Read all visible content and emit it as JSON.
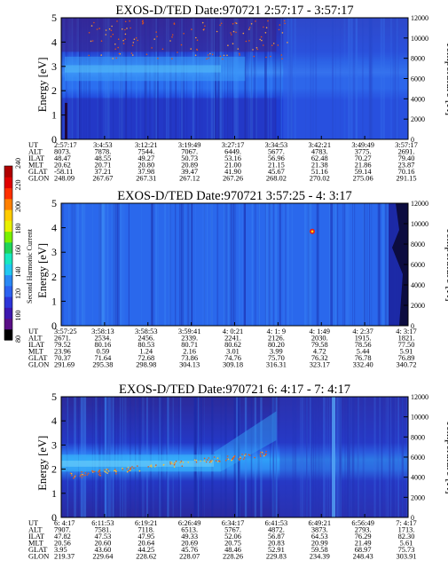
{
  "chart_data": [
    {
      "type": "heatmap",
      "title": "EXOS-D/TED   Date:970721   2:57:17 - 3:57:17",
      "ylabel": "Energy [eV]",
      "y2label": "Temperature [K]",
      "ylim": [
        0,
        5
      ],
      "y2lim": [
        0,
        12000
      ],
      "yticks": [
        "0",
        "1",
        "2",
        "3",
        "4",
        "5"
      ],
      "y2ticks": [
        "0",
        "2000",
        "4000",
        "6000",
        "8000",
        "10000",
        "12000"
      ],
      "orbit_table": {
        "labels": [
          "UT",
          "ALT",
          "ILAT",
          "MLT",
          "GLAT",
          "GLON"
        ],
        "columns": [
          [
            "2:57:17",
            "8073.",
            "48.47",
            "20.62",
            "-58.11",
            "248.09"
          ],
          [
            "3:4:53",
            "7878.",
            "48.55",
            "20.71",
            "37.21",
            "267.67"
          ],
          [
            "3:12:21",
            "7544.",
            "49.27",
            "20.80",
            "37.98",
            "267.31"
          ],
          [
            "3:19:49",
            "7067.",
            "50.73",
            "20.89",
            "39.47",
            "267.12"
          ],
          [
            "3:27:17",
            "6449.",
            "53.16",
            "21.00",
            "41.90",
            "267.26"
          ],
          [
            "3:34:53",
            "5677.",
            "56.96",
            "21.15",
            "45.67",
            "268.02"
          ],
          [
            "3:42:21",
            "4783.",
            "62.48",
            "21.38",
            "51.16",
            "270.02"
          ],
          [
            "3:49:49",
            "3775.",
            "70.27",
            "21.86",
            "59.14",
            "275.06"
          ],
          [
            "3:57:17",
            "2691.",
            "79.40",
            "23.87",
            "70.16",
            "291.15"
          ]
        ]
      }
    },
    {
      "type": "heatmap",
      "title": "EXOS-D/TED   Date:970721   3:57:25 - 4: 3:17",
      "ylabel": "Energy [eV]",
      "y2label": "Temperature [K]",
      "ylim": [
        0,
        5
      ],
      "y2lim": [
        0,
        12000
      ],
      "yticks": [
        "0",
        "1",
        "2",
        "3",
        "4",
        "5"
      ],
      "y2ticks": [
        "0",
        "2000",
        "4000",
        "6000",
        "8000",
        "10000",
        "12000"
      ],
      "colorbar": {
        "label": "Second Harmonic Current",
        "ticks": [
          "80",
          "100",
          "120",
          "140",
          "160",
          "180",
          "200",
          "220",
          "240"
        ],
        "colors": [
          "#000000",
          "#5a0f86",
          "#3d18b0",
          "#2d35d8",
          "#2c62f0",
          "#2a88f4",
          "#22c7f0",
          "#18e8c0",
          "#1fd35a",
          "#7af000",
          "#e8f000",
          "#ffcc00",
          "#ff8000",
          "#ff3000",
          "#e00000",
          "#b00000"
        ]
      },
      "orbit_table": {
        "labels": [
          "UT",
          "ALT",
          "ILAT",
          "MLT",
          "GLAT",
          "GLON"
        ],
        "columns": [
          [
            "3:57:25",
            "2671.",
            "79.52",
            "23.96",
            "70.37",
            "291.69"
          ],
          [
            "3:58:13",
            "2534.",
            "80.16",
            "0.59",
            "71.64",
            "295.38"
          ],
          [
            "3:58:53",
            "2456.",
            "80.53",
            "1.24",
            "72.68",
            "298.98"
          ],
          [
            "3:59:41",
            "2339.",
            "80.71",
            "2.16",
            "73.86",
            "304.13"
          ],
          [
            "4: 0:21",
            "2241.",
            "80.62",
            "3.01",
            "74.76",
            "309.18"
          ],
          [
            "4: 1: 9",
            "2126.",
            "80.20",
            "3.99",
            "75.70",
            "316.31"
          ],
          [
            "4: 1:49",
            "2030.",
            "79.58",
            "4.72",
            "76.32",
            "323.17"
          ],
          [
            "4: 2:37",
            "1915.",
            "78.56",
            "5.44",
            "76.78",
            "332.40"
          ],
          [
            "4: 3:17",
            "1821.",
            "77.50",
            "5.91",
            "76.89",
            "340.72"
          ]
        ]
      }
    },
    {
      "type": "heatmap",
      "title": "EXOS-D/TED   Date:970721   6: 4:17 - 7: 4:17",
      "ylabel": "Energy [eV]",
      "y2label": "Temperature [K]",
      "ylim": [
        0,
        5
      ],
      "y2lim": [
        0,
        12000
      ],
      "yticks": [
        "0",
        "1",
        "2",
        "3",
        "4",
        "5"
      ],
      "y2ticks": [
        "0",
        "2000",
        "4000",
        "6000",
        "8000",
        "10000",
        "12000"
      ],
      "orbit_table": {
        "labels": [
          "UT",
          "ALT",
          "ILAT",
          "MLT",
          "GLAT",
          "GLON"
        ],
        "columns": [
          [
            "6: 4:17",
            "7907.",
            "47.82",
            "20.56",
            "3.95",
            "219.37"
          ],
          [
            "6:11:53",
            "7581.",
            "47.53",
            "20.60",
            "43.60",
            "229.64"
          ],
          [
            "6:19:21",
            "7118.",
            "47.95",
            "20.64",
            "44.25",
            "228.62"
          ],
          [
            "6:26:49",
            "6513.",
            "49.33",
            "20.69",
            "45.76",
            "228.07"
          ],
          [
            "6:34:17",
            "5767.",
            "52.06",
            "20.75",
            "48.46",
            "228.26"
          ],
          [
            "6:41:53",
            "4872.",
            "56.87",
            "20.83",
            "52.91",
            "229.83"
          ],
          [
            "6:49:21",
            "3873.",
            "64.53",
            "20.99",
            "59.58",
            "234.39"
          ],
          [
            "6:56:49",
            "2793.",
            "76.29",
            "21.49",
            "68.97",
            "248.43"
          ],
          [
            "7: 4:17",
            "1713.",
            "82.30",
            "5.61",
            "75.73",
            "303.91"
          ]
        ]
      }
    }
  ]
}
